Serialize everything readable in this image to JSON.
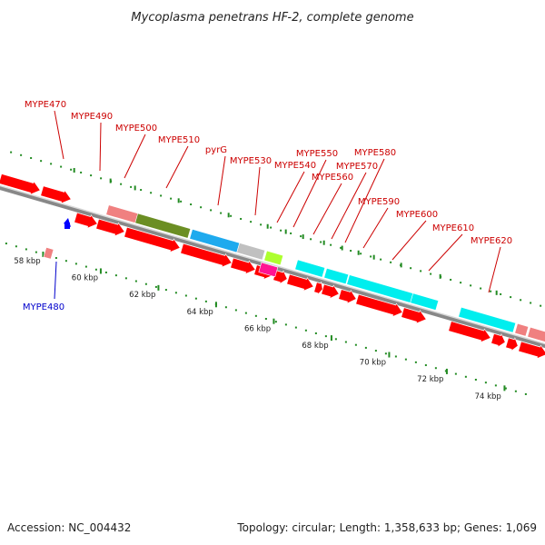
{
  "title": "Mycoplasma penetrans HF-2, complete genome",
  "footer": {
    "accession": "Accession: NC_004432",
    "topology": "Topology: circular; Length: 1,358,633 bp; Genes: 1,069"
  },
  "colors": {
    "forward_gene": "#ff0000",
    "reverse_gene": "#0000ff",
    "light_red_gene": "#f08080",
    "olive_gene": "#6b8e23",
    "blue_gene": "#1eaaee",
    "gray_gene": "#c0c0c0",
    "lime_gene": "#adff2f",
    "pink_gene": "#ff1493",
    "cyan_gene": "#00eeee",
    "ruler_tick": "#228b22",
    "label_forward": "#cc0000",
    "label_reverse": "#0000cc"
  },
  "ruler": {
    "unit": "kbp",
    "labels": [
      "58 kbp",
      "60 kbp",
      "62 kbp",
      "64 kbp",
      "66 kbp",
      "68 kbp",
      "70 kbp",
      "72 kbp",
      "74 kbp"
    ]
  },
  "gene_labels": [
    {
      "text": "MYPE470",
      "strand": "forward"
    },
    {
      "text": "MYPE490",
      "strand": "forward"
    },
    {
      "text": "MYPE500",
      "strand": "forward"
    },
    {
      "text": "MYPE510",
      "strand": "forward"
    },
    {
      "text": "pyrG",
      "strand": "forward"
    },
    {
      "text": "MYPE530",
      "strand": "forward"
    },
    {
      "text": "MYPE540",
      "strand": "forward"
    },
    {
      "text": "MYPE550",
      "strand": "forward"
    },
    {
      "text": "MYPE560",
      "strand": "forward"
    },
    {
      "text": "MYPE570",
      "strand": "forward"
    },
    {
      "text": "MYPE580",
      "strand": "forward"
    },
    {
      "text": "MYPE590",
      "strand": "forward"
    },
    {
      "text": "MYPE600",
      "strand": "forward"
    },
    {
      "text": "MYPE610",
      "strand": "forward"
    },
    {
      "text": "MYPE620",
      "strand": "forward"
    },
    {
      "text": "MYPE480",
      "strand": "reverse"
    }
  ]
}
